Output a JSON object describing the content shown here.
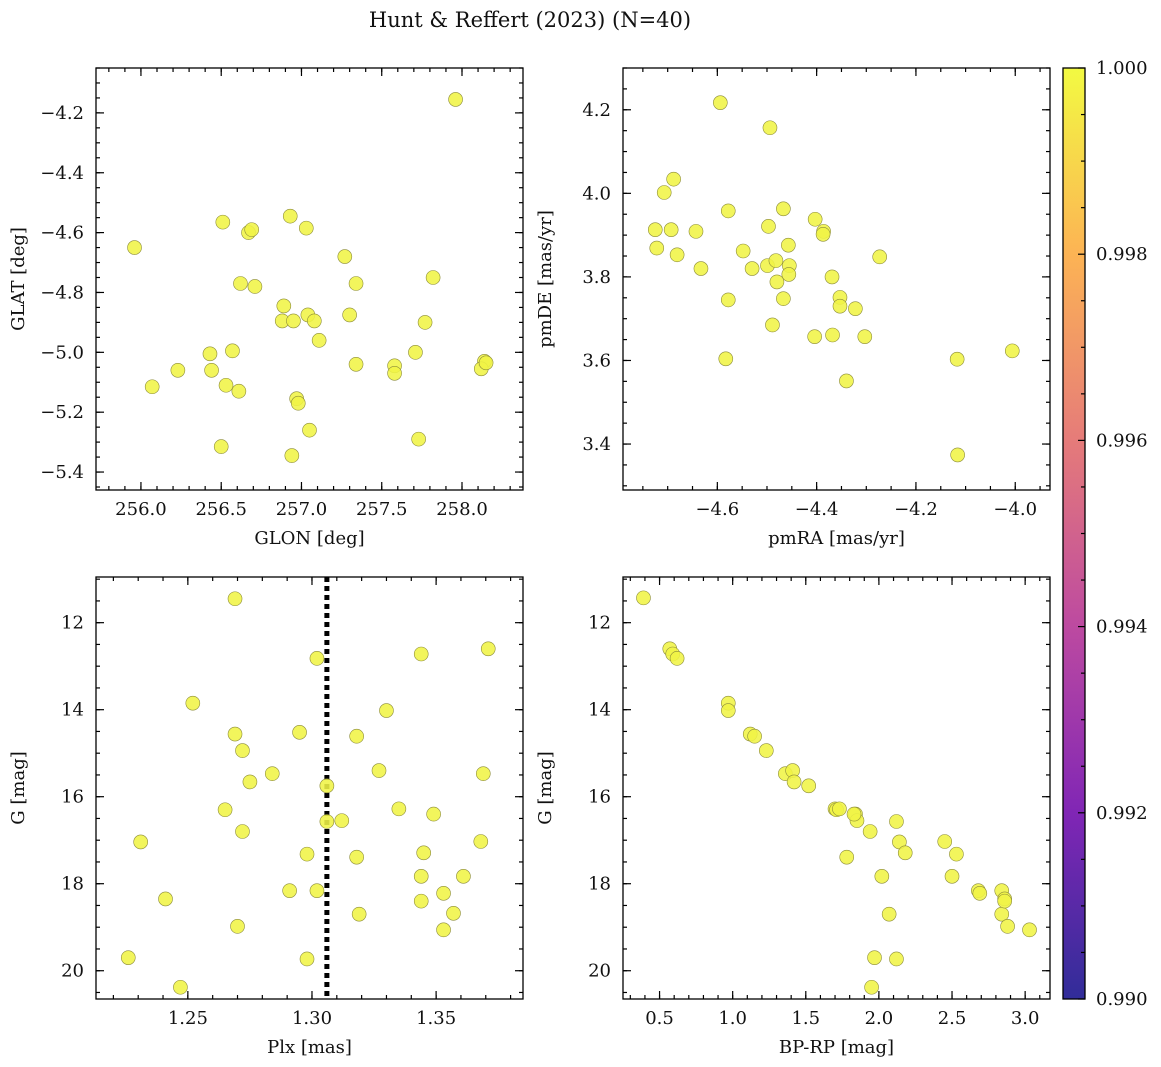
{
  "figure_title": "Hunt & Reffert (2023) (N=40)",
  "point_color": "#f0f445",
  "colormap": "plasma",
  "chart_data": [
    {
      "id": "glon-glat",
      "type": "scatter",
      "xlabel": "GLON [deg]",
      "ylabel": "GLAT [deg]",
      "xlim": [
        255.72,
        258.38
      ],
      "ylim": [
        -5.46,
        -4.05
      ],
      "invert_y": false,
      "xticks": [
        256.0,
        256.5,
        257.0,
        257.5,
        258.0
      ],
      "xtick_labels": [
        "256.0",
        "256.5",
        "257.0",
        "257.5",
        "258.0"
      ],
      "yticks": [
        -5.4,
        -5.2,
        -5.0,
        -4.8,
        -4.6,
        -4.4,
        -4.2
      ],
      "ytick_labels": [
        "−5.4",
        "−5.2",
        "−5.0",
        "−4.8",
        "−4.6",
        "−4.4",
        "−4.2"
      ],
      "xminor_step": 0.1,
      "yminor_step": 0.05,
      "points": [
        [
          257.96,
          -4.155
        ],
        [
          255.96,
          -4.65
        ],
        [
          256.51,
          -4.565
        ],
        [
          256.67,
          -4.6
        ],
        [
          256.69,
          -4.59
        ],
        [
          256.93,
          -4.545
        ],
        [
          257.03,
          -4.585
        ],
        [
          257.27,
          -4.68
        ],
        [
          256.62,
          -4.77
        ],
        [
          256.71,
          -4.78
        ],
        [
          257.34,
          -4.77
        ],
        [
          257.82,
          -4.75
        ],
        [
          256.89,
          -4.845
        ],
        [
          256.88,
          -4.895
        ],
        [
          256.95,
          -4.895
        ],
        [
          257.04,
          -4.875
        ],
        [
          257.08,
          -4.895
        ],
        [
          257.3,
          -4.875
        ],
        [
          257.77,
          -4.9
        ],
        [
          257.11,
          -4.96
        ],
        [
          256.57,
          -4.995
        ],
        [
          256.43,
          -5.005
        ],
        [
          257.71,
          -5.0
        ],
        [
          256.23,
          -5.06
        ],
        [
          256.44,
          -5.06
        ],
        [
          257.34,
          -5.04
        ],
        [
          257.58,
          -5.045
        ],
        [
          257.58,
          -5.07
        ],
        [
          258.14,
          -5.03
        ],
        [
          258.12,
          -5.055
        ],
        [
          256.07,
          -5.115
        ],
        [
          256.53,
          -5.11
        ],
        [
          256.61,
          -5.13
        ],
        [
          256.97,
          -5.155
        ],
        [
          256.98,
          -5.17
        ],
        [
          257.05,
          -5.26
        ],
        [
          257.73,
          -5.29
        ],
        [
          256.5,
          -5.315
        ],
        [
          256.94,
          -5.345
        ],
        [
          258.15,
          -5.035
        ]
      ]
    },
    {
      "id": "pmra-pmde",
      "type": "scatter",
      "xlabel": "pmRA [mas/yr]",
      "ylabel": "pmDE [mas/yr]",
      "xlim": [
        -4.79,
        -3.93
      ],
      "ylim": [
        3.29,
        4.3
      ],
      "invert_y": false,
      "xticks": [
        -4.6,
        -4.4,
        -4.2,
        -4.0
      ],
      "xtick_labels": [
        "−4.6",
        "−4.4",
        "−4.2",
        "−4.0"
      ],
      "yticks": [
        3.4,
        3.6,
        3.8,
        4.0,
        4.2
      ],
      "ytick_labels": [
        "3.4",
        "3.6",
        "3.8",
        "4.0",
        "4.2"
      ],
      "xminor_step": 0.05,
      "yminor_step": 0.05,
      "points": [
        [
          -4.594,
          4.217
        ],
        [
          -4.494,
          4.157
        ],
        [
          -4.688,
          4.034
        ],
        [
          -4.707,
          4.002
        ],
        [
          -4.725,
          3.913
        ],
        [
          -4.693,
          3.913
        ],
        [
          -4.643,
          3.909
        ],
        [
          -4.578,
          3.958
        ],
        [
          -4.497,
          3.921
        ],
        [
          -4.467,
          3.963
        ],
        [
          -4.403,
          3.938
        ],
        [
          -4.386,
          3.909
        ],
        [
          -4.387,
          3.902
        ],
        [
          -4.722,
          3.869
        ],
        [
          -4.681,
          3.853
        ],
        [
          -4.548,
          3.862
        ],
        [
          -4.457,
          3.876
        ],
        [
          -4.633,
          3.82
        ],
        [
          -4.53,
          3.82
        ],
        [
          -4.499,
          3.827
        ],
        [
          -4.482,
          3.839
        ],
        [
          -4.455,
          3.827
        ],
        [
          -4.456,
          3.806
        ],
        [
          -4.369,
          3.8
        ],
        [
          -4.273,
          3.848
        ],
        [
          -4.578,
          3.745
        ],
        [
          -4.48,
          3.788
        ],
        [
          -4.467,
          3.748
        ],
        [
          -4.353,
          3.751
        ],
        [
          -4.353,
          3.73
        ],
        [
          -4.322,
          3.724
        ],
        [
          -4.489,
          3.685
        ],
        [
          -4.404,
          3.657
        ],
        [
          -4.368,
          3.661
        ],
        [
          -4.303,
          3.657
        ],
        [
          -4.583,
          3.604
        ],
        [
          -4.34,
          3.551
        ],
        [
          -4.117,
          3.603
        ],
        [
          -4.006,
          3.623
        ],
        [
          -4.116,
          3.374
        ]
      ]
    },
    {
      "id": "plx-g",
      "type": "scatter",
      "xlabel": "Plx [mas]",
      "ylabel": "G [mag]",
      "xlim": [
        1.213,
        1.385
      ],
      "ylim": [
        20.65,
        10.95
      ],
      "invert_y": true,
      "vline": 1.306,
      "xticks": [
        1.25,
        1.3,
        1.35
      ],
      "xtick_labels": [
        "1.25",
        "1.30",
        "1.35"
      ],
      "yticks": [
        12,
        14,
        16,
        18,
        20
      ],
      "ytick_labels": [
        "12",
        "14",
        "16",
        "18",
        "20"
      ],
      "xminor_step": 0.01,
      "yminor_step": 0.5,
      "points": [
        [
          1.269,
          11.45
        ],
        [
          1.302,
          12.82
        ],
        [
          1.344,
          12.72
        ],
        [
          1.371,
          12.6
        ],
        [
          1.252,
          13.85
        ],
        [
          1.269,
          14.56
        ],
        [
          1.295,
          14.52
        ],
        [
          1.318,
          14.61
        ],
        [
          1.33,
          14.02
        ],
        [
          1.272,
          14.94
        ],
        [
          1.275,
          15.66
        ],
        [
          1.284,
          15.47
        ],
        [
          1.306,
          15.75
        ],
        [
          1.327,
          15.4
        ],
        [
          1.369,
          15.47
        ],
        [
          1.265,
          16.3
        ],
        [
          1.306,
          16.57
        ],
        [
          1.312,
          16.55
        ],
        [
          1.335,
          16.28
        ],
        [
          1.349,
          16.4
        ],
        [
          1.231,
          17.04
        ],
        [
          1.272,
          16.8
        ],
        [
          1.298,
          17.32
        ],
        [
          1.318,
          17.39
        ],
        [
          1.345,
          17.29
        ],
        [
          1.368,
          17.03
        ],
        [
          1.241,
          18.35
        ],
        [
          1.291,
          18.16
        ],
        [
          1.302,
          18.16
        ],
        [
          1.319,
          18.7
        ],
        [
          1.344,
          17.83
        ],
        [
          1.344,
          18.4
        ],
        [
          1.353,
          18.22
        ],
        [
          1.357,
          18.68
        ],
        [
          1.361,
          17.83
        ],
        [
          1.27,
          18.98
        ],
        [
          1.226,
          19.7
        ],
        [
          1.298,
          19.73
        ],
        [
          1.353,
          19.06
        ],
        [
          1.247,
          20.38
        ]
      ]
    },
    {
      "id": "bprp-g",
      "type": "scatter",
      "xlabel": "BP-RP [mag]",
      "ylabel": "G [mag]",
      "xlim": [
        0.25,
        3.17
      ],
      "ylim": [
        20.65,
        10.95
      ],
      "invert_y": true,
      "xticks": [
        0.5,
        1.0,
        1.5,
        2.0,
        2.5,
        3.0
      ],
      "xtick_labels": [
        "0.5",
        "1.0",
        "1.5",
        "2.0",
        "2.5",
        "3.0"
      ],
      "yticks": [
        12,
        14,
        16,
        18,
        20
      ],
      "ytick_labels": [
        "12",
        "14",
        "16",
        "18",
        "20"
      ],
      "xminor_step": 0.1,
      "yminor_step": 0.5,
      "points": [
        [
          0.39,
          11.43
        ],
        [
          0.57,
          12.6
        ],
        [
          0.59,
          12.72
        ],
        [
          0.62,
          12.82
        ],
        [
          0.97,
          13.85
        ],
        [
          0.97,
          14.02
        ],
        [
          1.12,
          14.56
        ],
        [
          1.15,
          14.61
        ],
        [
          1.23,
          14.94
        ],
        [
          1.36,
          15.47
        ],
        [
          1.41,
          15.4
        ],
        [
          1.42,
          15.66
        ],
        [
          1.52,
          15.75
        ],
        [
          1.7,
          16.28
        ],
        [
          1.71,
          16.3
        ],
        [
          1.84,
          16.4
        ],
        [
          1.85,
          16.55
        ],
        [
          1.94,
          16.8
        ],
        [
          2.12,
          16.57
        ],
        [
          2.14,
          17.04
        ],
        [
          2.18,
          17.29
        ],
        [
          2.45,
          17.03
        ],
        [
          2.53,
          17.32
        ],
        [
          1.78,
          17.39
        ],
        [
          2.02,
          17.83
        ],
        [
          2.5,
          17.83
        ],
        [
          2.68,
          18.16
        ],
        [
          2.69,
          18.22
        ],
        [
          2.84,
          18.16
        ],
        [
          2.86,
          18.35
        ],
        [
          2.84,
          18.7
        ],
        [
          2.07,
          18.7
        ],
        [
          2.88,
          18.98
        ],
        [
          3.03,
          19.06
        ],
        [
          1.97,
          19.7
        ],
        [
          2.12,
          19.73
        ],
        [
          1.95,
          20.38
        ],
        [
          2.86,
          18.4
        ],
        [
          1.83,
          16.4
        ],
        [
          1.73,
          16.28
        ]
      ]
    }
  ],
  "colorbar": {
    "min": 0.99,
    "max": 1.0,
    "ticks": [
      "0.990",
      "0.992",
      "0.994",
      "0.996",
      "0.998",
      "1.000"
    ],
    "colors": [
      "#0d0887",
      "#6a00a8",
      "#b12a90",
      "#e16462",
      "#fca636",
      "#f0f921"
    ]
  }
}
